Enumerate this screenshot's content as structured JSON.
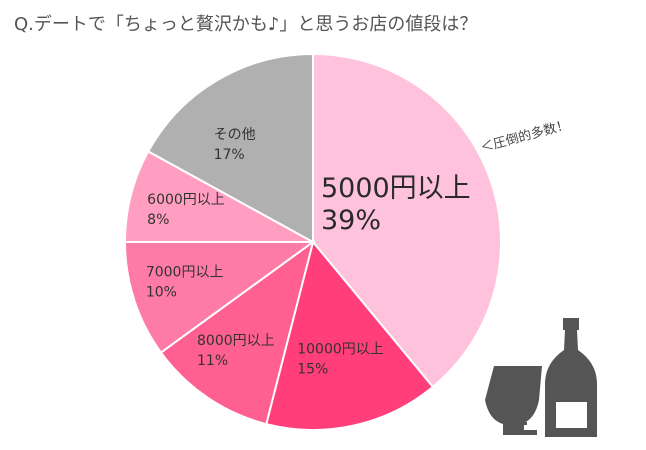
{
  "title": "Q.デートで「ちょっと贅沢かも♪」と思うお店の値段は？",
  "annotation": "＜圧倒的多数！",
  "chart_data": {
    "type": "pie",
    "title": "Q.デートで「ちょっと贅沢かも♪」と思うお店の値段は？",
    "start": "12 o'clock",
    "direction": "clockwise",
    "slices": [
      {
        "label": "5000円以上",
        "value": 39,
        "pct_text": "39%",
        "color": "#ffc2dc"
      },
      {
        "label": "10000円以上",
        "value": 15,
        "pct_text": "15%",
        "color": "#ff3e7a"
      },
      {
        "label": "8000円以上",
        "value": 11,
        "pct_text": "11%",
        "color": "#ff5f91"
      },
      {
        "label": "7000円以上",
        "value": 10,
        "pct_text": "10%",
        "color": "#ff7ba7"
      },
      {
        "label": "6000円以上",
        "value": 8,
        "pct_text": "8%",
        "color": "#ff9ec0"
      },
      {
        "label": "その他",
        "value": 17,
        "pct_text": "17%",
        "color": "#b0b0b0"
      }
    ]
  },
  "icons": {
    "wine_glass": "wine-glass-icon",
    "wine_bottle": "wine-bottle-icon",
    "icon_color": "#555555"
  }
}
